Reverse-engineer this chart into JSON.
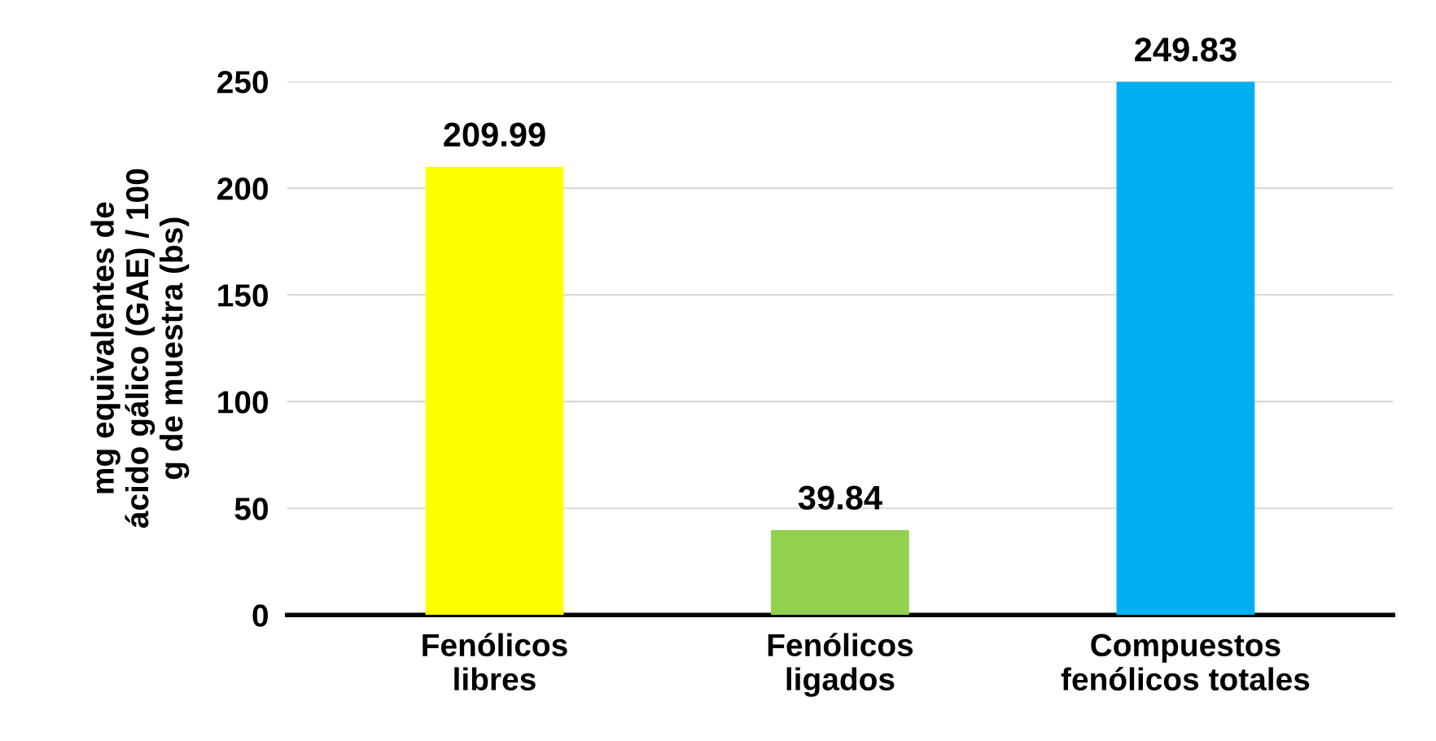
{
  "chart_data": {
    "type": "bar",
    "categories": [
      "Fenólicos\nlibres",
      "Fenólicos\nligados",
      "Compuestos\nfenólicos totales"
    ],
    "values": [
      209.99,
      39.84,
      249.83
    ],
    "colors": [
      "#ffff00",
      "#92d050",
      "#00b0f0"
    ],
    "ylabel": "mg equivalentes de\nácido gálico (GAE) / 100\ng de muestra (bs)",
    "ylim": [
      0,
      250
    ],
    "yticks": [
      0,
      50,
      100,
      150,
      200,
      250
    ],
    "grid": "y",
    "data_labels": true
  }
}
